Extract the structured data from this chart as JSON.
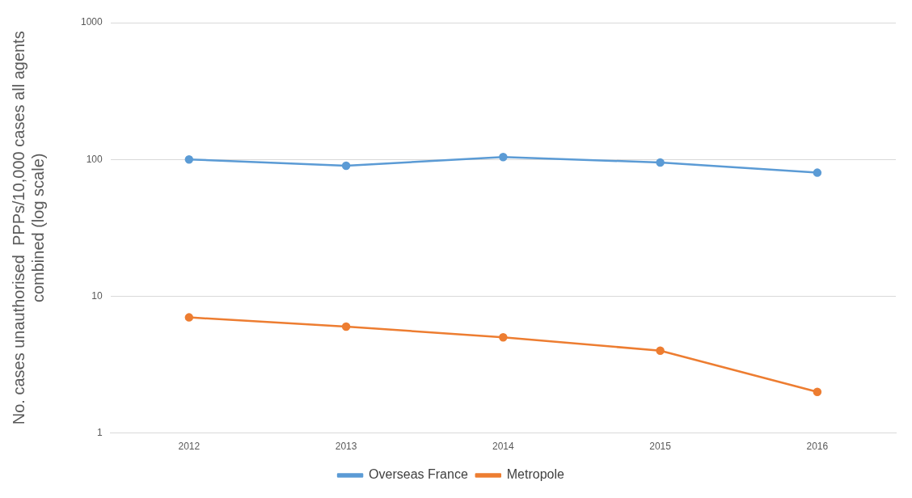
{
  "chart_data": {
    "type": "line",
    "ylabel": "No. cases unauthorised  PPPs/10,000 cases all agents combined (log scale)",
    "categories": [
      "2012",
      "2013",
      "2014",
      "2015",
      "2016"
    ],
    "series": [
      {
        "name": "Overseas France",
        "color": "#5b9bd5",
        "values": [
          100,
          90,
          104,
          95,
          80
        ]
      },
      {
        "name": "Metropole",
        "color": "#ed7d31",
        "values": [
          7,
          6,
          5,
          4,
          2
        ]
      }
    ],
    "log": true,
    "ylim": [
      1,
      1000
    ],
    "yticks": [
      1,
      10,
      100,
      1000
    ],
    "grid": "y",
    "legend": "bottom",
    "marker": "circle"
  }
}
